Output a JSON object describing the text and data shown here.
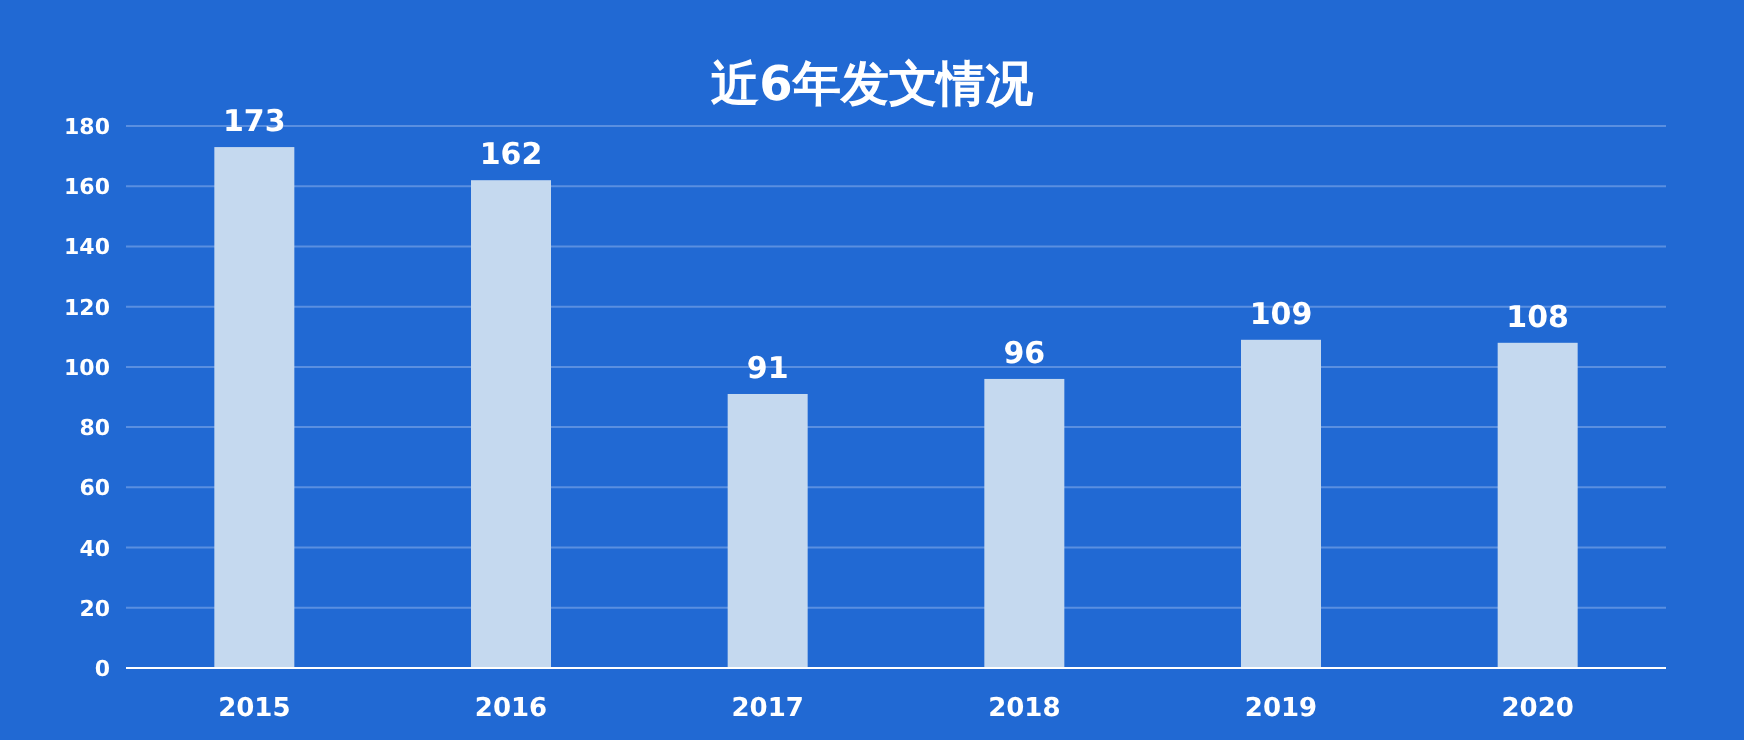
{
  "chart_data": {
    "type": "bar",
    "title": "近6年发文情况",
    "categories": [
      "2015",
      "2016",
      "2017",
      "2018",
      "2019",
      "2020"
    ],
    "values": [
      173,
      162,
      91,
      96,
      109,
      108
    ],
    "color": "#c5d9ef",
    "ylim": [
      0,
      180
    ],
    "yticks": [
      0,
      20,
      40,
      60,
      80,
      100,
      120,
      140,
      160,
      180
    ],
    "grid": "y",
    "data_labels": true
  }
}
